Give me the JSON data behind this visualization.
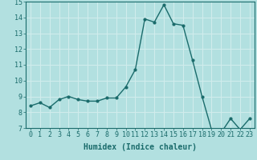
{
  "x": [
    0,
    1,
    2,
    3,
    4,
    5,
    6,
    7,
    8,
    9,
    10,
    11,
    12,
    13,
    14,
    15,
    16,
    17,
    18,
    19,
    20,
    21,
    22,
    23
  ],
  "y": [
    8.4,
    8.6,
    8.3,
    8.8,
    9.0,
    8.8,
    8.7,
    8.7,
    8.9,
    8.9,
    9.6,
    10.7,
    13.9,
    13.7,
    14.8,
    13.6,
    13.5,
    11.3,
    9.0,
    6.9,
    6.7,
    7.6,
    6.9,
    7.6
  ],
  "line_color": "#1a6b6b",
  "marker": "o",
  "marker_size": 2.0,
  "linewidth": 1.0,
  "xlabel": "Humidex (Indice chaleur)",
  "ylim": [
    7,
    15
  ],
  "xlim": [
    -0.5,
    23.5
  ],
  "yticks": [
    7,
    8,
    9,
    10,
    11,
    12,
    13,
    14,
    15
  ],
  "xticks": [
    0,
    1,
    2,
    3,
    4,
    5,
    6,
    7,
    8,
    9,
    10,
    11,
    12,
    13,
    14,
    15,
    16,
    17,
    18,
    19,
    20,
    21,
    22,
    23
  ],
  "background_color": "#b2e0e0",
  "grid_color": "#d0ecec",
  "tick_color": "#1a6b6b",
  "label_color": "#1a6b6b",
  "xlabel_fontsize": 7,
  "tick_fontsize": 6
}
